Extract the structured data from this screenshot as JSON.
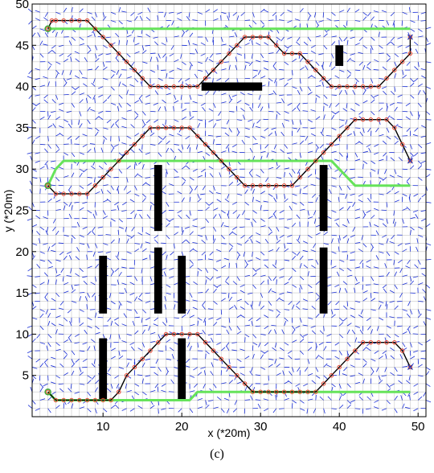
{
  "chart_data": {
    "type": "line",
    "xlabel": "x (*20m)",
    "ylabel": "y (*20m)",
    "xlim": [
      1,
      51
    ],
    "ylim": [
      0,
      50
    ],
    "xticks": [
      10,
      20,
      30,
      40,
      50
    ],
    "yticks": [
      5,
      10,
      15,
      20,
      25,
      30,
      35,
      40,
      45,
      50
    ],
    "grid": true,
    "caption": "(c)",
    "colors": {
      "field_arrows": "#1a2fd6",
      "planned_path": "#66e35a",
      "trajectory": "#000000",
      "waypoint_marker": "#e8432e",
      "obstacle": "#000000",
      "start_marker": "#3fae3f",
      "goal_marker": "#2233aa"
    },
    "obstacles": [
      {
        "x": [
          39.5,
          40.5
        ],
        "y": [
          42.5,
          45.0
        ]
      },
      {
        "x": [
          22.5,
          30.2
        ],
        "y": [
          39.5,
          40.5
        ]
      },
      {
        "x": [
          16.5,
          17.5
        ],
        "y": [
          22.5,
          30.5
        ]
      },
      {
        "x": [
          37.5,
          38.5
        ],
        "y": [
          22.5,
          30.5
        ]
      },
      {
        "x": [
          9.5,
          10.5
        ],
        "y": [
          12.5,
          19.5
        ]
      },
      {
        "x": [
          16.5,
          17.5
        ],
        "y": [
          12.5,
          20.5
        ]
      },
      {
        "x": [
          19.5,
          20.5
        ],
        "y": [
          12.5,
          19.5
        ]
      },
      {
        "x": [
          37.5,
          38.5
        ],
        "y": [
          12.5,
          20.5
        ]
      },
      {
        "x": [
          9.5,
          10.5
        ],
        "y": [
          2.0,
          9.5
        ]
      },
      {
        "x": [
          19.5,
          20.5
        ],
        "y": [
          2.0,
          9.5
        ]
      }
    ],
    "series": [
      {
        "x": [
          3,
          4,
          5,
          5,
          6,
          7,
          8,
          9,
          10,
          11,
          12,
          13,
          14,
          15,
          16,
          17,
          18,
          19,
          20,
          21,
          22,
          23,
          24,
          25,
          26,
          27,
          28,
          29,
          30,
          31,
          32,
          33,
          34,
          35,
          36,
          37,
          38,
          39,
          40,
          41,
          42,
          43,
          44,
          45,
          46,
          47,
          48,
          49
        ],
        "y": [
          47,
          47,
          47,
          47,
          47,
          47,
          47,
          47,
          47,
          47,
          47,
          47,
          47,
          47,
          47,
          47,
          47,
          47,
          47,
          47,
          47,
          47,
          47,
          47,
          47,
          47,
          47,
          47,
          47,
          47,
          47,
          47,
          47,
          47,
          47,
          47,
          47,
          47,
          47,
          47,
          47,
          47,
          47,
          47,
          47,
          47,
          47,
          47
        ]
      },
      {
        "x": [
          3,
          4,
          5,
          6,
          7,
          8,
          9,
          10,
          11,
          12,
          13,
          14,
          15,
          16,
          17,
          18,
          19,
          20,
          21,
          22,
          23,
          24,
          25,
          26,
          27,
          28,
          29,
          30,
          31,
          32,
          33,
          34,
          35,
          36,
          37,
          38,
          39,
          40,
          41,
          42,
          43,
          44,
          45,
          46,
          47,
          48,
          49
        ],
        "y": [
          28,
          30,
          31,
          31,
          31,
          31,
          31,
          31,
          31,
          31,
          31,
          31,
          31,
          31,
          31,
          31,
          31,
          31,
          31,
          31,
          31,
          31,
          31,
          31,
          31,
          31,
          31,
          31,
          31,
          31,
          31,
          31,
          31,
          31,
          31,
          31,
          31,
          30,
          29,
          28,
          28,
          28,
          28,
          28,
          28,
          28,
          28
        ]
      },
      {
        "x": [
          3,
          4,
          5,
          6,
          7,
          8,
          9,
          10,
          11,
          12,
          13,
          14,
          15,
          16,
          17,
          18,
          19,
          20,
          21,
          22,
          23,
          24,
          25,
          26,
          27,
          28,
          29,
          30,
          31,
          32,
          33,
          34,
          35,
          36,
          37,
          38,
          39,
          40,
          41,
          42,
          43,
          44,
          45,
          46,
          47,
          48,
          49
        ],
        "y": [
          3,
          2,
          2,
          2,
          2,
          2,
          2,
          2,
          2,
          2,
          2,
          2,
          2,
          2,
          2,
          2,
          2,
          2,
          2,
          3,
          3,
          3,
          3,
          3,
          3,
          3,
          3,
          3,
          3,
          3,
          3,
          3,
          3,
          3,
          3,
          3,
          3,
          3,
          3,
          3,
          3,
          3,
          3,
          3,
          3,
          3,
          3
        ]
      },
      {
        "x": [
          3,
          3.5,
          4,
          5,
          6,
          7,
          8,
          9,
          10,
          11,
          12,
          13,
          14,
          15,
          16,
          17,
          18,
          19,
          20,
          21,
          22,
          23,
          24,
          25,
          26,
          27,
          28,
          29,
          30,
          31,
          32,
          33,
          34,
          35,
          36,
          37,
          38,
          39,
          40,
          41,
          42,
          43,
          44,
          45,
          46,
          47,
          48,
          49,
          49
        ],
        "y": [
          47,
          48,
          48,
          48,
          48,
          48,
          48,
          47,
          46,
          45,
          44,
          43,
          42,
          41,
          40,
          40,
          40,
          40,
          40,
          40,
          40,
          41,
          42,
          43,
          44,
          45,
          46,
          46,
          46,
          46,
          45,
          44,
          44,
          44,
          43,
          42,
          41,
          40,
          40,
          40,
          40,
          40,
          40,
          40,
          41,
          42,
          43,
          44,
          46
        ]
      },
      {
        "x": [
          3,
          4,
          5,
          6,
          7,
          8,
          9,
          10,
          11,
          12,
          13,
          14,
          15,
          16,
          17,
          18,
          19,
          20,
          21,
          22,
          23,
          24,
          25,
          26,
          27,
          28,
          29,
          30,
          31,
          32,
          33,
          34,
          35,
          36,
          37,
          38,
          39,
          40,
          41,
          42,
          43,
          44,
          45,
          46,
          47,
          48,
          49
        ],
        "y": [
          28,
          27,
          27,
          27,
          27,
          27,
          28,
          29,
          30,
          31,
          32,
          33,
          34,
          35,
          35,
          35,
          35,
          35,
          35,
          34,
          33,
          32,
          31,
          30,
          29,
          28,
          28,
          28,
          28,
          28,
          28,
          28,
          29,
          30,
          31,
          32,
          33,
          34,
          35,
          36,
          36,
          36,
          36,
          36,
          35,
          33,
          31
        ]
      },
      {
        "x": [
          3,
          4,
          5,
          6,
          7,
          8,
          9,
          10,
          11,
          12,
          13,
          14,
          15,
          16,
          17,
          18,
          19,
          20,
          21,
          22,
          23,
          24,
          25,
          26,
          27,
          28,
          29,
          30,
          31,
          32,
          33,
          34,
          35,
          36,
          37,
          38,
          39,
          40,
          41,
          42,
          43,
          44,
          45,
          46,
          47,
          48,
          49
        ],
        "y": [
          3,
          2,
          2,
          2,
          2,
          2,
          2,
          2,
          2,
          3,
          5,
          6,
          7,
          8,
          9,
          10,
          10,
          10,
          10,
          10,
          9,
          8,
          7,
          6,
          5,
          4,
          3,
          3,
          3,
          3,
          3,
          3,
          3,
          3,
          3,
          4,
          5,
          6,
          7,
          8,
          9,
          9,
          9,
          9,
          9,
          8,
          6
        ]
      }
    ]
  }
}
